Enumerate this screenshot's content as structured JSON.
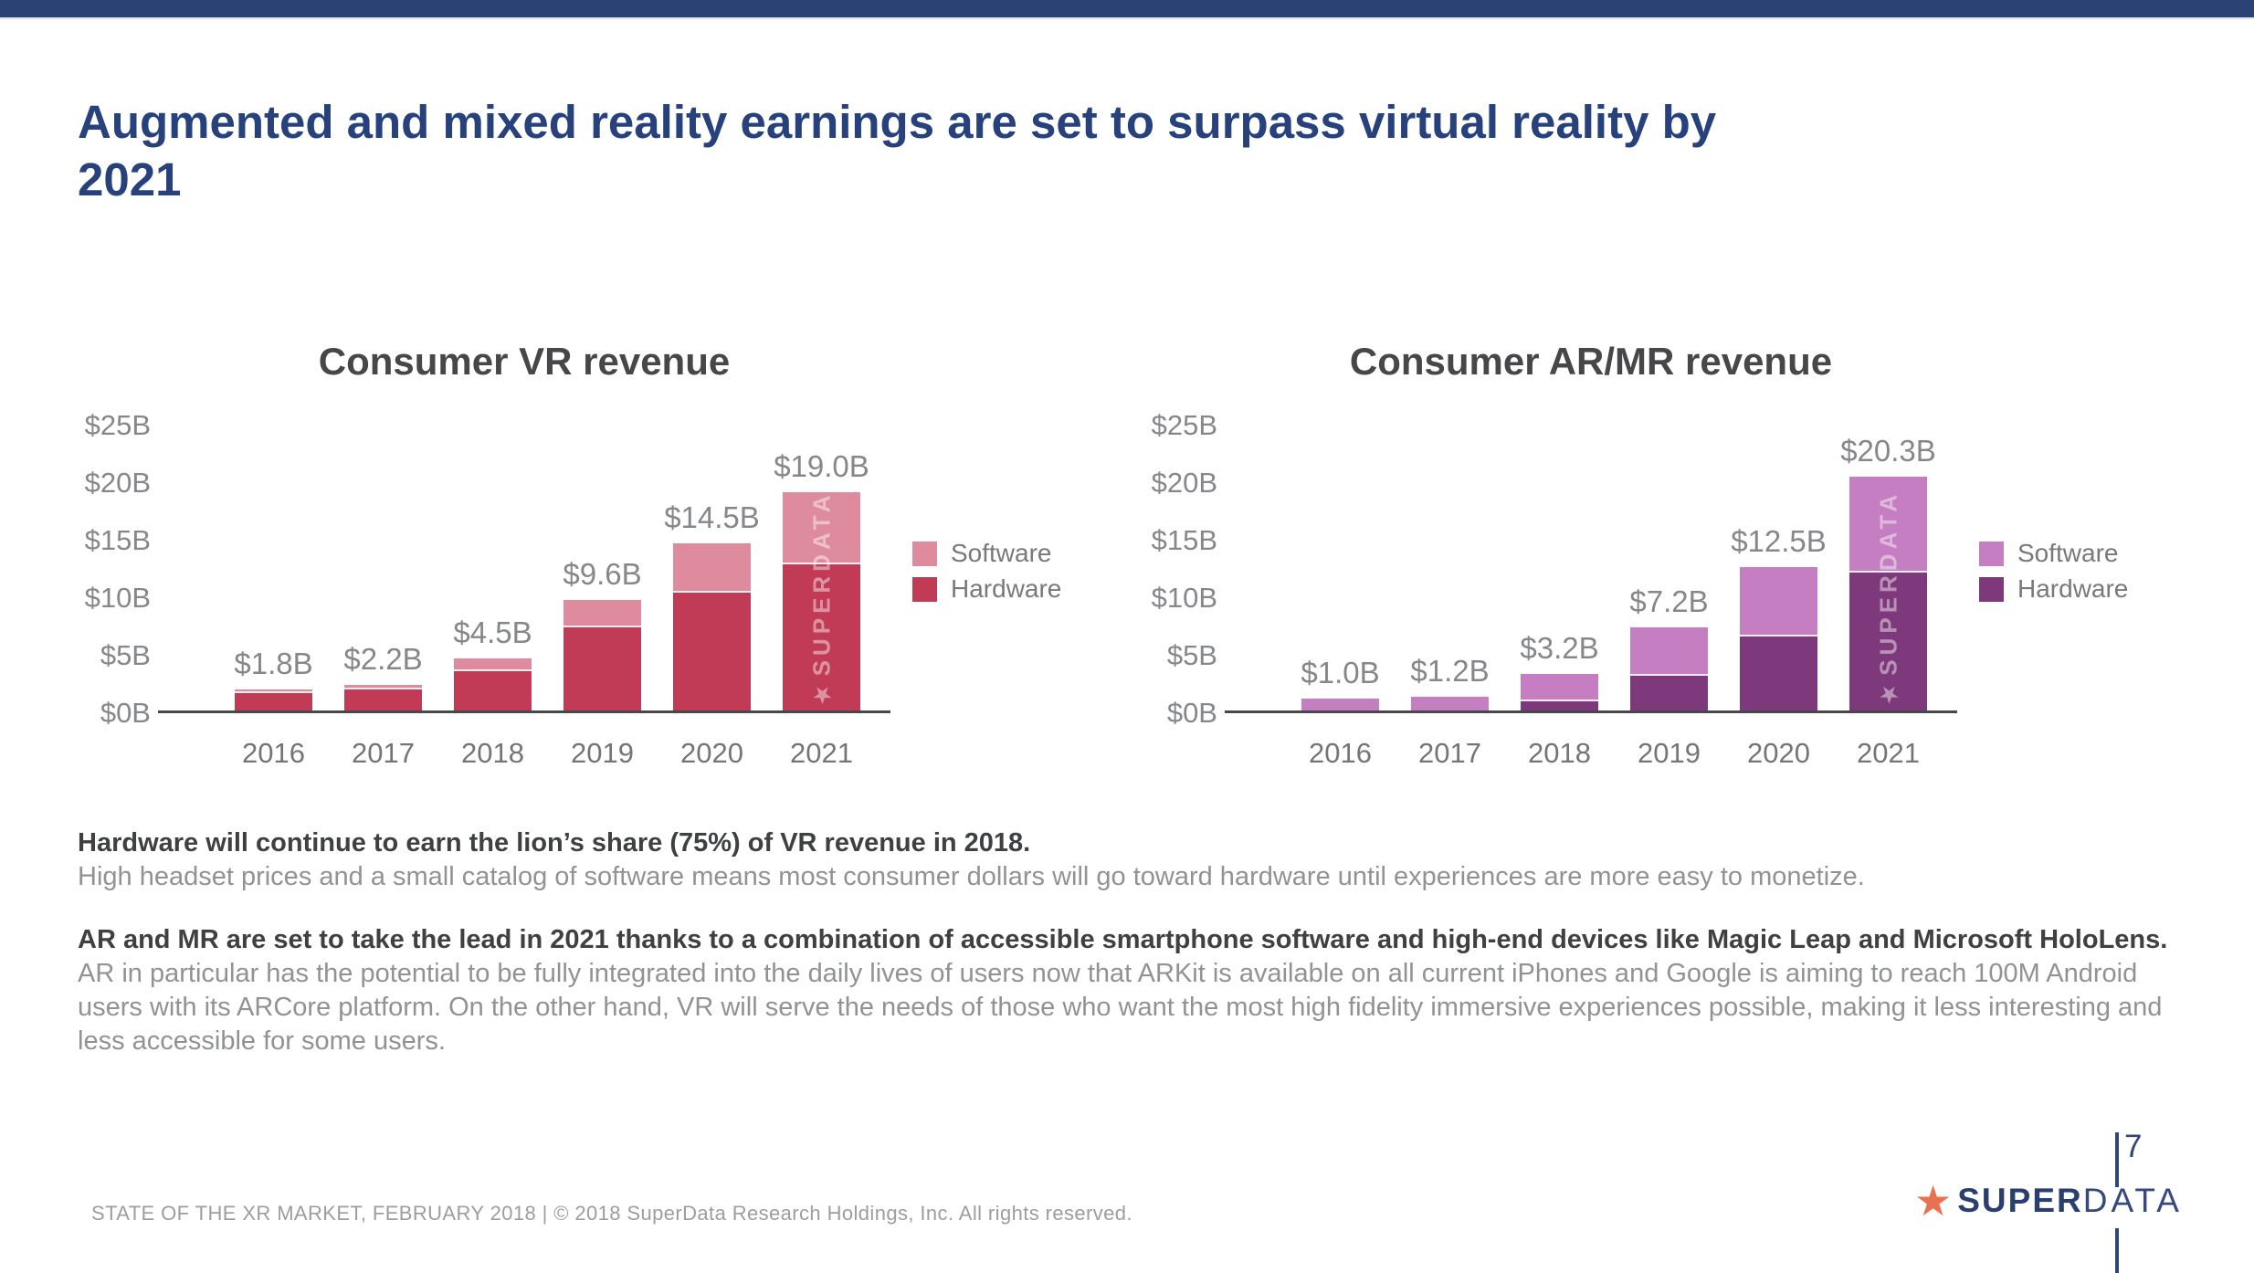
{
  "slide": {
    "title_lines": [
      "Augmented and mixed reality earnings are set to surpass virtual reality by",
      "2021"
    ],
    "page_number": "7",
    "footer": "STATE OF THE XR MARKET, FEBRUARY 2018  |  © 2018 SuperData Research Holdings, Inc. All rights reserved.",
    "logo": {
      "star": "★",
      "bold": "SUPER",
      "light": "DATA"
    }
  },
  "paragraphs": [
    {
      "style": "bold",
      "text": "Hardware will continue to earn the lion’s share (75%) of VR revenue in 2018."
    },
    {
      "style": "regular",
      "text": "High headset prices and a small catalog of software means most consumer dollars will go toward hardware until experiences are more easy to monetize."
    },
    {
      "style": "bold",
      "text": "AR and MR are set to take the lead in 2021 thanks to a combination of accessible smartphone software and high-end devices like Magic Leap and Microsoft HoloLens."
    },
    {
      "style": "regular",
      "text": "AR in particular has the potential to be fully integrated into the daily lives of users now that ARKit is available on all current iPhones and Google is aiming to reach 100M Android users with its ARCore platform. On the other hand, VR will serve the needs of those who want the most high fidelity immersive experiences possible, making it less interesting and less accessible for some users."
    }
  ],
  "chart_data": [
    {
      "type": "bar",
      "stacked": true,
      "title": "Consumer VR revenue",
      "categories": [
        "2016",
        "2017",
        "2018",
        "2019",
        "2020",
        "2021"
      ],
      "series": [
        {
          "name": "Hardware",
          "color": "#c13a56",
          "values": [
            1.5,
            1.8,
            3.4,
            7.2,
            10.2,
            12.7
          ]
        },
        {
          "name": "Software",
          "color": "#de8c9d",
          "values": [
            0.3,
            0.4,
            1.1,
            2.4,
            4.3,
            6.3
          ]
        }
      ],
      "total_labels": [
        "$1.8B",
        "$2.2B",
        "$4.5B",
        "$9.6B",
        "$14.5B",
        "$19.0B"
      ],
      "totals": [
        1.8,
        2.2,
        4.5,
        9.6,
        14.5,
        19.0
      ],
      "yticks": [
        {
          "value": 0,
          "label": "$0B"
        },
        {
          "value": 5,
          "label": "$5B"
        },
        {
          "value": 10,
          "label": "$10B"
        },
        {
          "value": 15,
          "label": "$15B"
        },
        {
          "value": 20,
          "label": "$20B"
        },
        {
          "value": 25,
          "label": "$25B"
        }
      ],
      "ylim": [
        0,
        25
      ],
      "legend": [
        "Software",
        "Hardware"
      ],
      "legend_position": "right",
      "grid": false,
      "watermark": "★SUPERDATA"
    },
    {
      "type": "bar",
      "stacked": true,
      "title": "Consumer AR/MR revenue",
      "categories": [
        "2016",
        "2017",
        "2018",
        "2019",
        "2020",
        "2021"
      ],
      "series": [
        {
          "name": "Hardware",
          "color": "#7d397b",
          "values": [
            0,
            0,
            0.8,
            3.0,
            6.4,
            12.0
          ]
        },
        {
          "name": "Software",
          "color": "#c47ec1",
          "values": [
            1.0,
            1.2,
            2.4,
            4.2,
            6.1,
            8.3
          ]
        }
      ],
      "total_labels": [
        "$1.0B",
        "$1.2B",
        "$3.2B",
        "$7.2B",
        "$12.5B",
        "$20.3B"
      ],
      "totals": [
        1.0,
        1.2,
        3.2,
        7.2,
        12.5,
        20.3
      ],
      "yticks": [
        {
          "value": 0,
          "label": "$0B"
        },
        {
          "value": 5,
          "label": "$5B"
        },
        {
          "value": 10,
          "label": "$10B"
        },
        {
          "value": 15,
          "label": "$15B"
        },
        {
          "value": 20,
          "label": "$20B"
        },
        {
          "value": 25,
          "label": "$25B"
        }
      ],
      "ylim": [
        0,
        25
      ],
      "legend": [
        "Software",
        "Hardware"
      ],
      "legend_position": "right",
      "grid": false,
      "watermark": "★SUPERDATA"
    }
  ]
}
